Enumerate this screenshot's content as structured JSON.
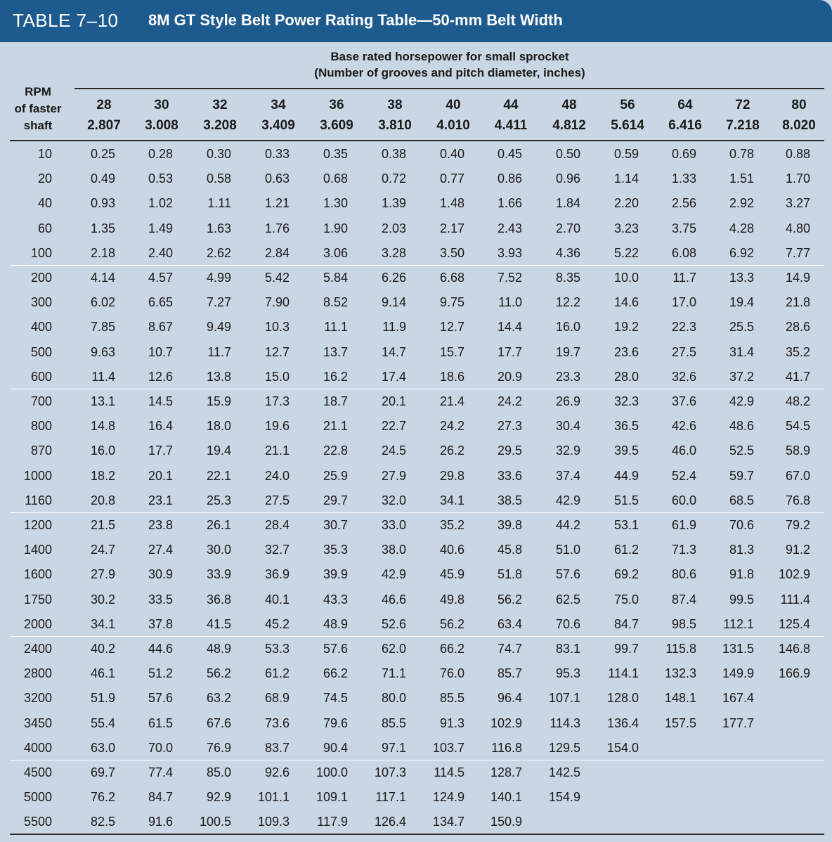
{
  "title_label": "TABLE 7–10",
  "title_text": "8M GT Style Belt Power Rating Table—50-mm Belt Width",
  "spanner_line1": "Base rated horsepower for small sprocket",
  "spanner_line2": "(Number of grooves and pitch diameter, inches)",
  "rpm_header": [
    "RPM",
    "of faster",
    "shaft"
  ],
  "columns": [
    {
      "grooves": "28",
      "pitch": "2.807"
    },
    {
      "grooves": "30",
      "pitch": "3.008"
    },
    {
      "grooves": "32",
      "pitch": "3.208"
    },
    {
      "grooves": "34",
      "pitch": "3.409"
    },
    {
      "grooves": "36",
      "pitch": "3.609"
    },
    {
      "grooves": "38",
      "pitch": "3.810"
    },
    {
      "grooves": "40",
      "pitch": "4.010"
    },
    {
      "grooves": "44",
      "pitch": "4.411"
    },
    {
      "grooves": "48",
      "pitch": "4.812"
    },
    {
      "grooves": "56",
      "pitch": "5.614"
    },
    {
      "grooves": "64",
      "pitch": "6.416"
    },
    {
      "grooves": "72",
      "pitch": "7.218"
    },
    {
      "grooves": "80",
      "pitch": "8.020"
    }
  ],
  "rows": [
    {
      "rpm": "10",
      "values": [
        "0.25",
        "0.28",
        "0.30",
        "0.33",
        "0.35",
        "0.38",
        "0.40",
        "0.45",
        "0.50",
        "0.59",
        "0.69",
        "0.78",
        "0.88"
      ]
    },
    {
      "rpm": "20",
      "values": [
        "0.49",
        "0.53",
        "0.58",
        "0.63",
        "0.68",
        "0.72",
        "0.77",
        "0.86",
        "0.96",
        "1.14",
        "1.33",
        "1.51",
        "1.70"
      ]
    },
    {
      "rpm": "40",
      "values": [
        "0.93",
        "1.02",
        "1.11",
        "1.21",
        "1.30",
        "1.39",
        "1.48",
        "1.66",
        "1.84",
        "2.20",
        "2.56",
        "2.92",
        "3.27"
      ]
    },
    {
      "rpm": "60",
      "values": [
        "1.35",
        "1.49",
        "1.63",
        "1.76",
        "1.90",
        "2.03",
        "2.17",
        "2.43",
        "2.70",
        "3.23",
        "3.75",
        "4.28",
        "4.80"
      ]
    },
    {
      "rpm": "100",
      "values": [
        "2.18",
        "2.40",
        "2.62",
        "2.84",
        "3.06",
        "3.28",
        "3.50",
        "3.93",
        "4.36",
        "5.22",
        "6.08",
        "6.92",
        "7.77"
      ]
    },
    {
      "rpm": "200",
      "values": [
        "4.14",
        "4.57",
        "4.99",
        "5.42",
        "5.84",
        "6.26",
        "6.68",
        "7.52",
        "8.35",
        "10.0",
        "11.7",
        "13.3",
        "14.9"
      ]
    },
    {
      "rpm": "300",
      "values": [
        "6.02",
        "6.65",
        "7.27",
        "7.90",
        "8.52",
        "9.14",
        "9.75",
        "11.0",
        "12.2",
        "14.6",
        "17.0",
        "19.4",
        "21.8"
      ]
    },
    {
      "rpm": "400",
      "values": [
        "7.85",
        "8.67",
        "9.49",
        "10.3",
        "11.1",
        "11.9",
        "12.7",
        "14.4",
        "16.0",
        "19.2",
        "22.3",
        "25.5",
        "28.6"
      ]
    },
    {
      "rpm": "500",
      "values": [
        "9.63",
        "10.7",
        "11.7",
        "12.7",
        "13.7",
        "14.7",
        "15.7",
        "17.7",
        "19.7",
        "23.6",
        "27.5",
        "31.4",
        "35.2"
      ]
    },
    {
      "rpm": "600",
      "values": [
        "11.4",
        "12.6",
        "13.8",
        "15.0",
        "16.2",
        "17.4",
        "18.6",
        "20.9",
        "23.3",
        "28.0",
        "32.6",
        "37.2",
        "41.7"
      ]
    },
    {
      "rpm": "700",
      "values": [
        "13.1",
        "14.5",
        "15.9",
        "17.3",
        "18.7",
        "20.1",
        "21.4",
        "24.2",
        "26.9",
        "32.3",
        "37.6",
        "42.9",
        "48.2"
      ]
    },
    {
      "rpm": "800",
      "values": [
        "14.8",
        "16.4",
        "18.0",
        "19.6",
        "21.1",
        "22.7",
        "24.2",
        "27.3",
        "30.4",
        "36.5",
        "42.6",
        "48.6",
        "54.5"
      ]
    },
    {
      "rpm": "870",
      "values": [
        "16.0",
        "17.7",
        "19.4",
        "21.1",
        "22.8",
        "24.5",
        "26.2",
        "29.5",
        "32.9",
        "39.5",
        "46.0",
        "52.5",
        "58.9"
      ]
    },
    {
      "rpm": "1000",
      "values": [
        "18.2",
        "20.1",
        "22.1",
        "24.0",
        "25.9",
        "27.9",
        "29.8",
        "33.6",
        "37.4",
        "44.9",
        "52.4",
        "59.7",
        "67.0"
      ]
    },
    {
      "rpm": "1160",
      "values": [
        "20.8",
        "23.1",
        "25.3",
        "27.5",
        "29.7",
        "32.0",
        "34.1",
        "38.5",
        "42.9",
        "51.5",
        "60.0",
        "68.5",
        "76.8"
      ]
    },
    {
      "rpm": "1200",
      "values": [
        "21.5",
        "23.8",
        "26.1",
        "28.4",
        "30.7",
        "33.0",
        "35.2",
        "39.8",
        "44.2",
        "53.1",
        "61.9",
        "70.6",
        "79.2"
      ]
    },
    {
      "rpm": "1400",
      "values": [
        "24.7",
        "27.4",
        "30.0",
        "32.7",
        "35.3",
        "38.0",
        "40.6",
        "45.8",
        "51.0",
        "61.2",
        "71.3",
        "81.3",
        "91.2"
      ]
    },
    {
      "rpm": "1600",
      "values": [
        "27.9",
        "30.9",
        "33.9",
        "36.9",
        "39.9",
        "42.9",
        "45.9",
        "51.8",
        "57.6",
        "69.2",
        "80.6",
        "91.8",
        "102.9"
      ]
    },
    {
      "rpm": "1750",
      "values": [
        "30.2",
        "33.5",
        "36.8",
        "40.1",
        "43.3",
        "46.6",
        "49.8",
        "56.2",
        "62.5",
        "75.0",
        "87.4",
        "99.5",
        "111.4"
      ]
    },
    {
      "rpm": "2000",
      "values": [
        "34.1",
        "37.8",
        "41.5",
        "45.2",
        "48.9",
        "52.6",
        "56.2",
        "63.4",
        "70.6",
        "84.7",
        "98.5",
        "112.1",
        "125.4"
      ]
    },
    {
      "rpm": "2400",
      "values": [
        "40.2",
        "44.6",
        "48.9",
        "53.3",
        "57.6",
        "62.0",
        "66.2",
        "74.7",
        "83.1",
        "99.7",
        "115.8",
        "131.5",
        "146.8"
      ]
    },
    {
      "rpm": "2800",
      "values": [
        "46.1",
        "51.2",
        "56.2",
        "61.2",
        "66.2",
        "71.1",
        "76.0",
        "85.7",
        "95.3",
        "114.1",
        "132.3",
        "149.9",
        "166.9"
      ]
    },
    {
      "rpm": "3200",
      "values": [
        "51.9",
        "57.6",
        "63.2",
        "68.9",
        "74.5",
        "80.0",
        "85.5",
        "96.4",
        "107.1",
        "128.0",
        "148.1",
        "167.4",
        ""
      ]
    },
    {
      "rpm": "3450",
      "values": [
        "55.4",
        "61.5",
        "67.6",
        "73.6",
        "79.6",
        "85.5",
        "91.3",
        "102.9",
        "114.3",
        "136.4",
        "157.5",
        "177.7",
        ""
      ]
    },
    {
      "rpm": "4000",
      "values": [
        "63.0",
        "70.0",
        "76.9",
        "83.7",
        "90.4",
        "97.1",
        "103.7",
        "116.8",
        "129.5",
        "154.0",
        "",
        "",
        ""
      ]
    },
    {
      "rpm": "4500",
      "values": [
        "69.7",
        "77.4",
        "85.0",
        "92.6",
        "100.0",
        "107.3",
        "114.5",
        "128.7",
        "142.5",
        "",
        "",
        "",
        ""
      ]
    },
    {
      "rpm": "5000",
      "values": [
        "76.2",
        "84.7",
        "92.9",
        "101.1",
        "109.1",
        "117.1",
        "124.9",
        "140.1",
        "154.9",
        "",
        "",
        "",
        ""
      ]
    },
    {
      "rpm": "5500",
      "values": [
        "82.5",
        "91.6",
        "100.5",
        "109.3",
        "117.9",
        "126.4",
        "134.7",
        "150.9",
        "",
        "",
        "",
        "",
        ""
      ]
    }
  ]
}
